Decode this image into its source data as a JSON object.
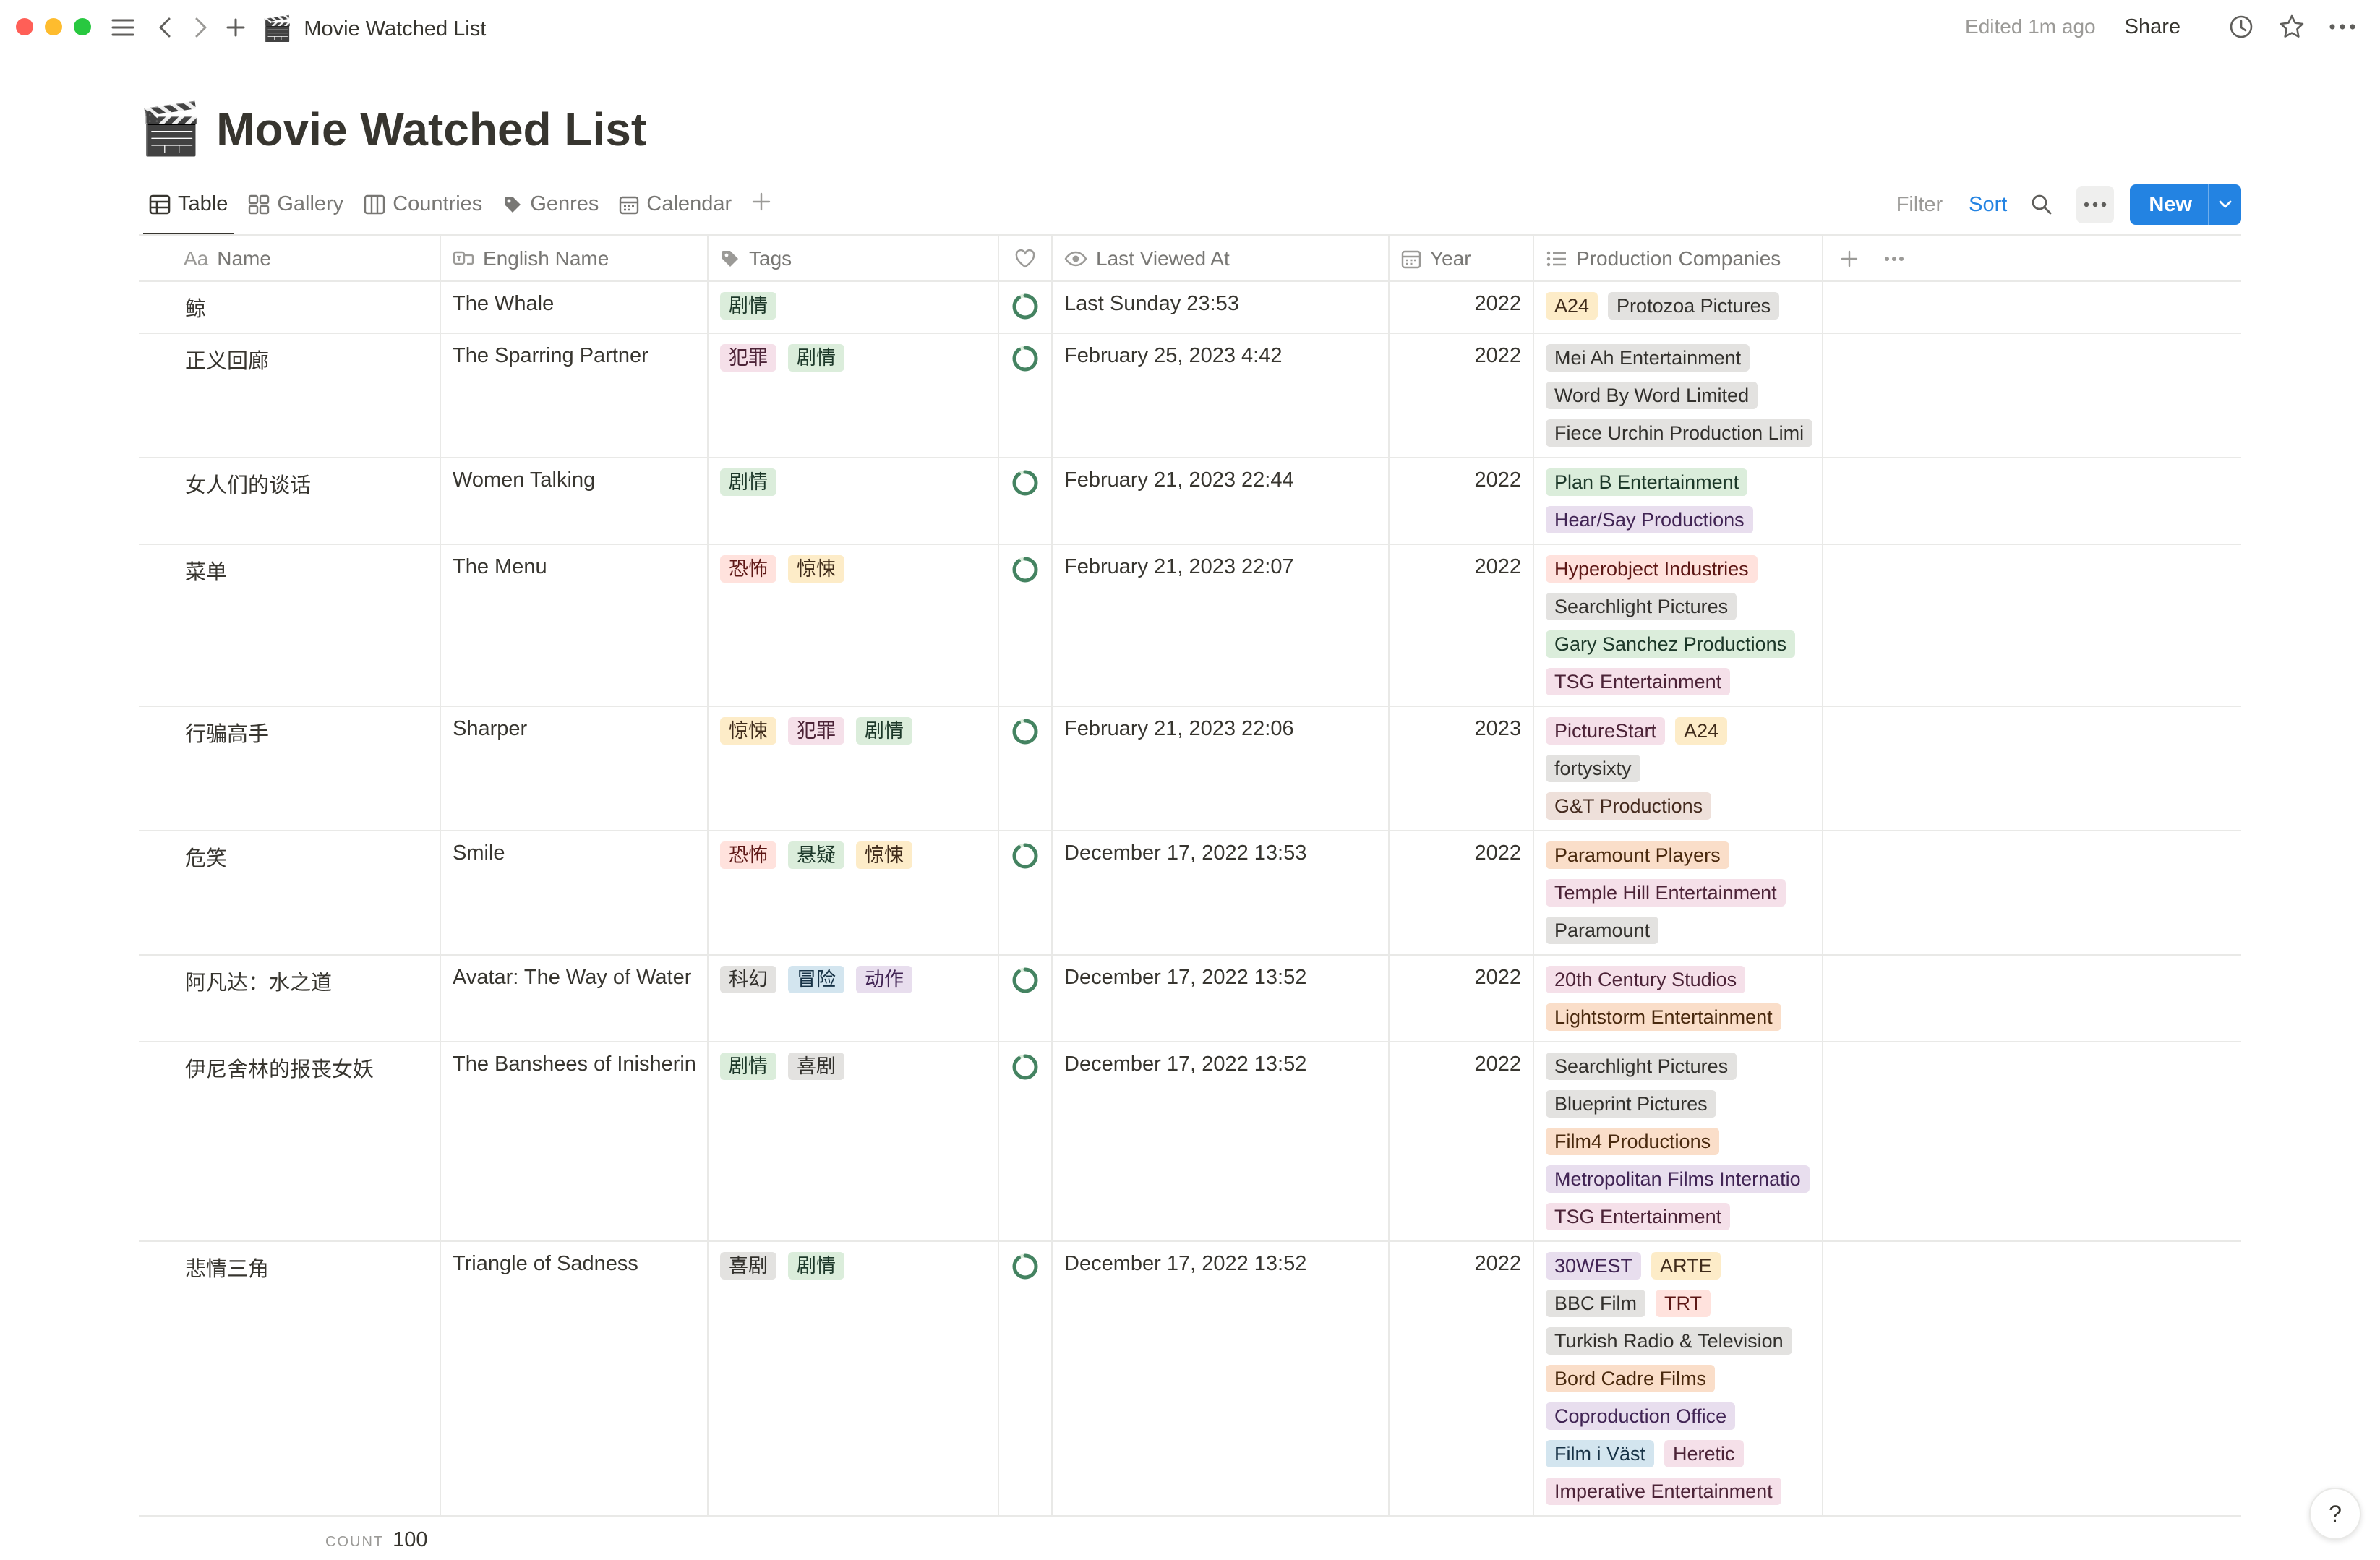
{
  "window": {
    "title": "Movie Watched List",
    "title_emoji": "🎬",
    "edited": "Edited 1m ago",
    "share": "Share"
  },
  "page": {
    "title": "Movie Watched List",
    "emoji": "🎬"
  },
  "views": [
    {
      "label": "Table",
      "icon": "table-icon",
      "active": true
    },
    {
      "label": "Gallery",
      "icon": "gallery-icon"
    },
    {
      "label": "Countries",
      "icon": "board-icon"
    },
    {
      "label": "Genres",
      "icon": "tag-icon"
    },
    {
      "label": "Calendar",
      "icon": "calendar-icon"
    }
  ],
  "actions": {
    "filter": "Filter",
    "sort": "Sort",
    "new": "New"
  },
  "columns": {
    "name": "Name",
    "name_prefix": "Aa",
    "english": "English Name",
    "tags": "Tags",
    "last_viewed": "Last Viewed At",
    "year": "Year",
    "companies": "Production Companies"
  },
  "rows": [
    {
      "name": "鲸",
      "english": "The Whale",
      "tags": [
        {
          "t": "剧情",
          "c": "green"
        }
      ],
      "last_viewed": "Last Sunday 23:53",
      "year": "2022",
      "companies": [
        [
          {
            "t": "A24",
            "c": "yellow"
          },
          {
            "t": "Protozoa Pictures",
            "c": "gray"
          }
        ]
      ]
    },
    {
      "name": "正义回廊",
      "english": "The Sparring Partner",
      "tags": [
        {
          "t": "犯罪",
          "c": "pink"
        },
        {
          "t": "剧情",
          "c": "green"
        }
      ],
      "last_viewed": "February 25, 2023 4:42",
      "year": "2022",
      "companies": [
        [
          {
            "t": "Mei Ah Entertainment",
            "c": "gray"
          }
        ],
        [
          {
            "t": "Word By Word Limited",
            "c": "gray"
          }
        ],
        [
          {
            "t": "Fiece Urchin Production Limi",
            "c": "gray"
          }
        ]
      ]
    },
    {
      "name": "女人们的谈话",
      "english": "Women Talking",
      "tags": [
        {
          "t": "剧情",
          "c": "green"
        }
      ],
      "last_viewed": "February 21, 2023 22:44",
      "year": "2022",
      "companies": [
        [
          {
            "t": "Plan B Entertainment",
            "c": "green"
          }
        ],
        [
          {
            "t": "Hear/Say Productions",
            "c": "purple"
          }
        ]
      ]
    },
    {
      "name": "菜单",
      "english": "The Menu",
      "tags": [
        {
          "t": "恐怖",
          "c": "red"
        },
        {
          "t": "惊悚",
          "c": "yellow"
        }
      ],
      "last_viewed": "February 21, 2023 22:07",
      "year": "2022",
      "companies": [
        [
          {
            "t": "Hyperobject Industries",
            "c": "red"
          }
        ],
        [
          {
            "t": "Searchlight Pictures",
            "c": "gray"
          }
        ],
        [
          {
            "t": "Gary Sanchez Productions",
            "c": "green"
          }
        ],
        [
          {
            "t": "TSG Entertainment",
            "c": "pink"
          }
        ]
      ]
    },
    {
      "name": "行骗高手",
      "english": "Sharper",
      "tags": [
        {
          "t": "惊悚",
          "c": "yellow"
        },
        {
          "t": "犯罪",
          "c": "pink"
        },
        {
          "t": "剧情",
          "c": "green"
        }
      ],
      "last_viewed": "February 21, 2023 22:06",
      "year": "2023",
      "companies": [
        [
          {
            "t": "PictureStart",
            "c": "pink"
          },
          {
            "t": "A24",
            "c": "yellow"
          }
        ],
        [
          {
            "t": "fortysixty",
            "c": "gray"
          }
        ],
        [
          {
            "t": "G&T Productions",
            "c": "brown"
          }
        ]
      ]
    },
    {
      "name": "危笑",
      "english": "Smile",
      "tags": [
        {
          "t": "恐怖",
          "c": "red"
        },
        {
          "t": "悬疑",
          "c": "green"
        },
        {
          "t": "惊悚",
          "c": "yellow"
        }
      ],
      "last_viewed": "December 17, 2022 13:53",
      "year": "2022",
      "companies": [
        [
          {
            "t": "Paramount Players",
            "c": "orange"
          }
        ],
        [
          {
            "t": "Temple Hill Entertainment",
            "c": "pink"
          }
        ],
        [
          {
            "t": "Paramount",
            "c": "gray"
          }
        ]
      ]
    },
    {
      "name": "阿凡达：水之道",
      "english": "Avatar: The Way of Water",
      "tags": [
        {
          "t": "科幻",
          "c": "gray"
        },
        {
          "t": "冒险",
          "c": "blue"
        },
        {
          "t": "动作",
          "c": "purple"
        }
      ],
      "last_viewed": "December 17, 2022 13:52",
      "year": "2022",
      "companies": [
        [
          {
            "t": "20th Century Studios",
            "c": "pink"
          }
        ],
        [
          {
            "t": "Lightstorm Entertainment",
            "c": "orange"
          }
        ]
      ]
    },
    {
      "name": "伊尼舍林的报丧女妖",
      "english": "The Banshees of Inisherin",
      "tags": [
        {
          "t": "剧情",
          "c": "green"
        },
        {
          "t": "喜剧",
          "c": "gray"
        }
      ],
      "last_viewed": "December 17, 2022 13:52",
      "year": "2022",
      "companies": [
        [
          {
            "t": "Searchlight Pictures",
            "c": "gray"
          }
        ],
        [
          {
            "t": "Blueprint Pictures",
            "c": "gray"
          }
        ],
        [
          {
            "t": "Film4 Productions",
            "c": "orange"
          }
        ],
        [
          {
            "t": "Metropolitan Films Internatio",
            "c": "purple"
          }
        ],
        [
          {
            "t": "TSG Entertainment",
            "c": "pink"
          }
        ]
      ]
    },
    {
      "name": "悲情三角",
      "english": "Triangle of Sadness",
      "tags": [
        {
          "t": "喜剧",
          "c": "gray"
        },
        {
          "t": "剧情",
          "c": "green"
        }
      ],
      "last_viewed": "December 17, 2022 13:52",
      "year": "2022",
      "companies": [
        [
          {
            "t": "30WEST",
            "c": "purple"
          },
          {
            "t": "ARTE",
            "c": "yellow"
          }
        ],
        [
          {
            "t": "BBC Film",
            "c": "gray"
          },
          {
            "t": "TRT",
            "c": "red"
          }
        ],
        [
          {
            "t": "Turkish Radio & Television",
            "c": "gray"
          }
        ],
        [
          {
            "t": "Bord Cadre Films",
            "c": "orange"
          }
        ],
        [
          {
            "t": "Coproduction Office",
            "c": "purple"
          }
        ],
        [
          {
            "t": "Film i Väst",
            "c": "blue"
          },
          {
            "t": "Heretic",
            "c": "pink"
          }
        ],
        [
          {
            "t": "Imperative Entertainment",
            "c": "pink"
          }
        ]
      ]
    }
  ],
  "footer": {
    "count_label": "COUNT",
    "count": "100"
  },
  "help": "?"
}
